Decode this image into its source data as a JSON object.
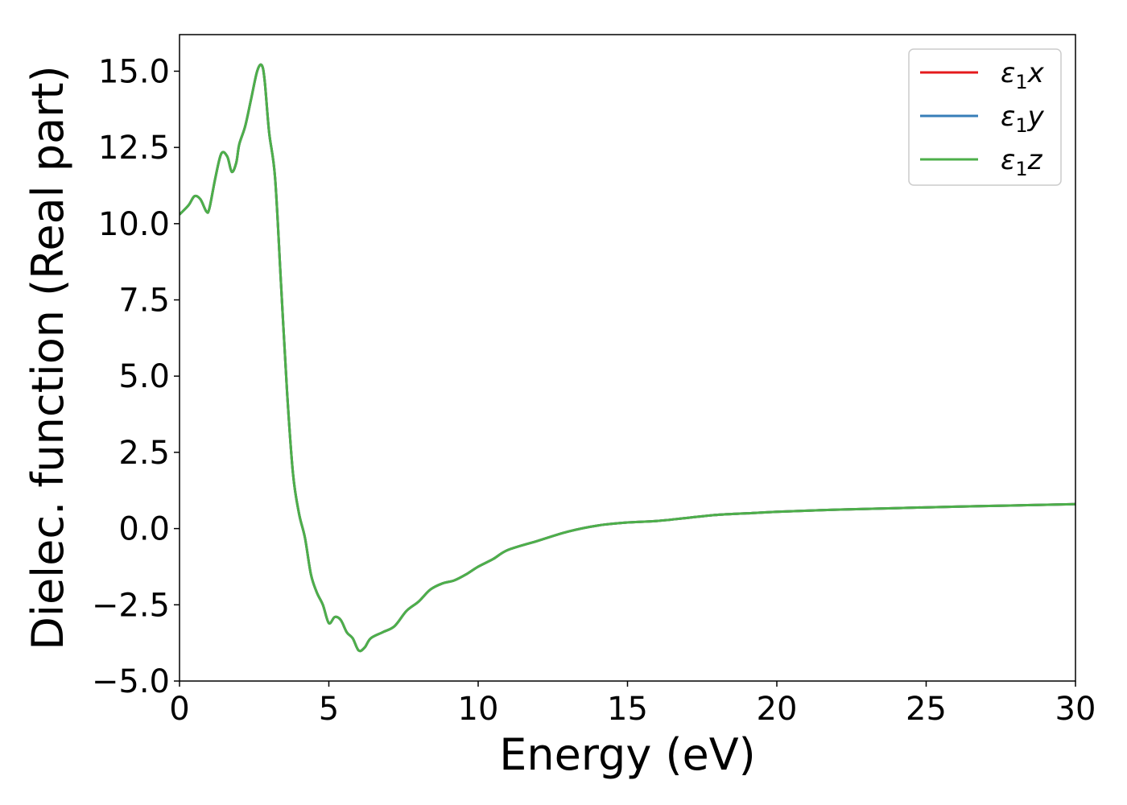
{
  "chart_data": {
    "type": "line",
    "xlabel": "Energy (eV)",
    "ylabel": "Dielec. function (Real part)",
    "xlim": [
      0,
      30
    ],
    "ylim": [
      -5.0,
      16.2
    ],
    "xticks": [
      "0",
      "5",
      "10",
      "15",
      "20",
      "25",
      "30"
    ],
    "yticks": [
      "−5.0",
      "−2.5",
      "0.0",
      "2.5",
      "5.0",
      "7.5",
      "10.0",
      "12.5",
      "15.0"
    ],
    "xtick_values": [
      0,
      5,
      10,
      15,
      20,
      25,
      30
    ],
    "ytick_values": [
      -5.0,
      -2.5,
      0.0,
      2.5,
      5.0,
      7.5,
      10.0,
      12.5,
      15.0
    ],
    "grid": false,
    "legend_position": "top-right",
    "series": [
      {
        "name": "ε₁x",
        "legend_main": "ε",
        "legend_sub": "1",
        "legend_var": "x",
        "color": "#e41a1c",
        "data": "shared"
      },
      {
        "name": "ε₁y",
        "legend_main": "ε",
        "legend_sub": "1",
        "legend_var": "y",
        "color": "#377eb8",
        "data": "shared"
      },
      {
        "name": "ε₁z",
        "legend_main": "ε",
        "legend_sub": "1",
        "legend_var": "z",
        "color": "#4daf4a",
        "data": "shared"
      }
    ],
    "x": [
      0,
      0.3,
      0.5,
      0.7,
      0.9,
      1.0,
      1.2,
      1.4,
      1.6,
      1.75,
      1.9,
      2.0,
      2.2,
      2.4,
      2.6,
      2.75,
      2.85,
      3.0,
      3.2,
      3.4,
      3.6,
      3.8,
      4.0,
      4.2,
      4.4,
      4.6,
      4.8,
      5.0,
      5.2,
      5.4,
      5.6,
      5.8,
      6.0,
      6.2,
      6.4,
      6.8,
      7.2,
      7.6,
      8.0,
      8.4,
      8.8,
      9.2,
      9.6,
      10.0,
      10.5,
      11.0,
      12.0,
      13.0,
      14.0,
      15.0,
      16.0,
      17.0,
      18.0,
      19.0,
      20.0,
      22.0,
      24.0,
      26.0,
      28.0,
      30.0
    ],
    "y": [
      10.3,
      10.6,
      10.9,
      10.8,
      10.4,
      10.5,
      11.5,
      12.3,
      12.2,
      11.7,
      12.0,
      12.6,
      13.2,
      14.1,
      15.0,
      15.2,
      14.7,
      13.0,
      11.5,
      8.0,
      4.5,
      1.8,
      0.5,
      -0.3,
      -1.5,
      -2.1,
      -2.5,
      -3.1,
      -2.9,
      -3.0,
      -3.4,
      -3.6,
      -4.0,
      -3.9,
      -3.6,
      -3.4,
      -3.2,
      -2.7,
      -2.4,
      -2.0,
      -1.8,
      -1.7,
      -1.5,
      -1.25,
      -1.0,
      -0.7,
      -0.4,
      -0.1,
      0.1,
      0.2,
      0.25,
      0.35,
      0.45,
      0.5,
      0.55,
      0.62,
      0.67,
      0.72,
      0.76,
      0.8
    ]
  }
}
